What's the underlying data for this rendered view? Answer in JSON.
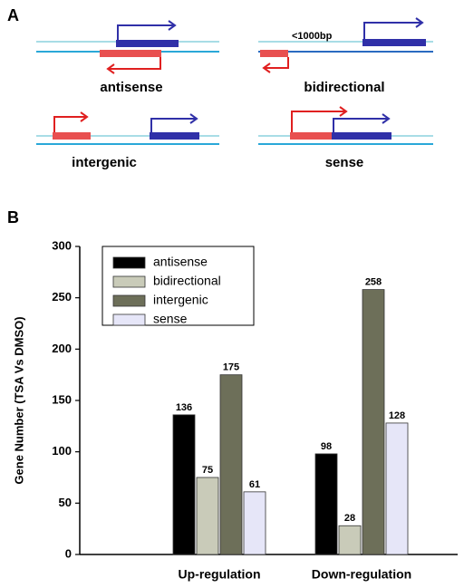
{
  "panel_a": {
    "label": "A",
    "annotation": "<1000bp",
    "items": [
      {
        "label": "antisense"
      },
      {
        "label": "bidirectional"
      },
      {
        "label": "intergenic"
      },
      {
        "label": "sense"
      }
    ]
  },
  "chart_data": {
    "type": "bar",
    "panel_label": "B",
    "ylabel": "Gene Number (TSA Vs DMSO)",
    "categories": [
      "Up-regulation",
      "Down-regulation"
    ],
    "series": [
      {
        "name": "antisense",
        "color": "#000000",
        "values": [
          136,
          98
        ]
      },
      {
        "name": "bidirectional",
        "color": "#c9cbb9",
        "values": [
          75,
          28
        ]
      },
      {
        "name": "intergenic",
        "color": "#6d6f59",
        "values": [
          175,
          258
        ]
      },
      {
        "name": "sense",
        "color": "#e6e6f8",
        "values": [
          61,
          128
        ]
      }
    ],
    "ylim": [
      0,
      300
    ],
    "yticks": [
      0,
      50,
      100,
      150,
      200,
      250,
      300
    ],
    "grid": false,
    "legend": "upper left"
  }
}
